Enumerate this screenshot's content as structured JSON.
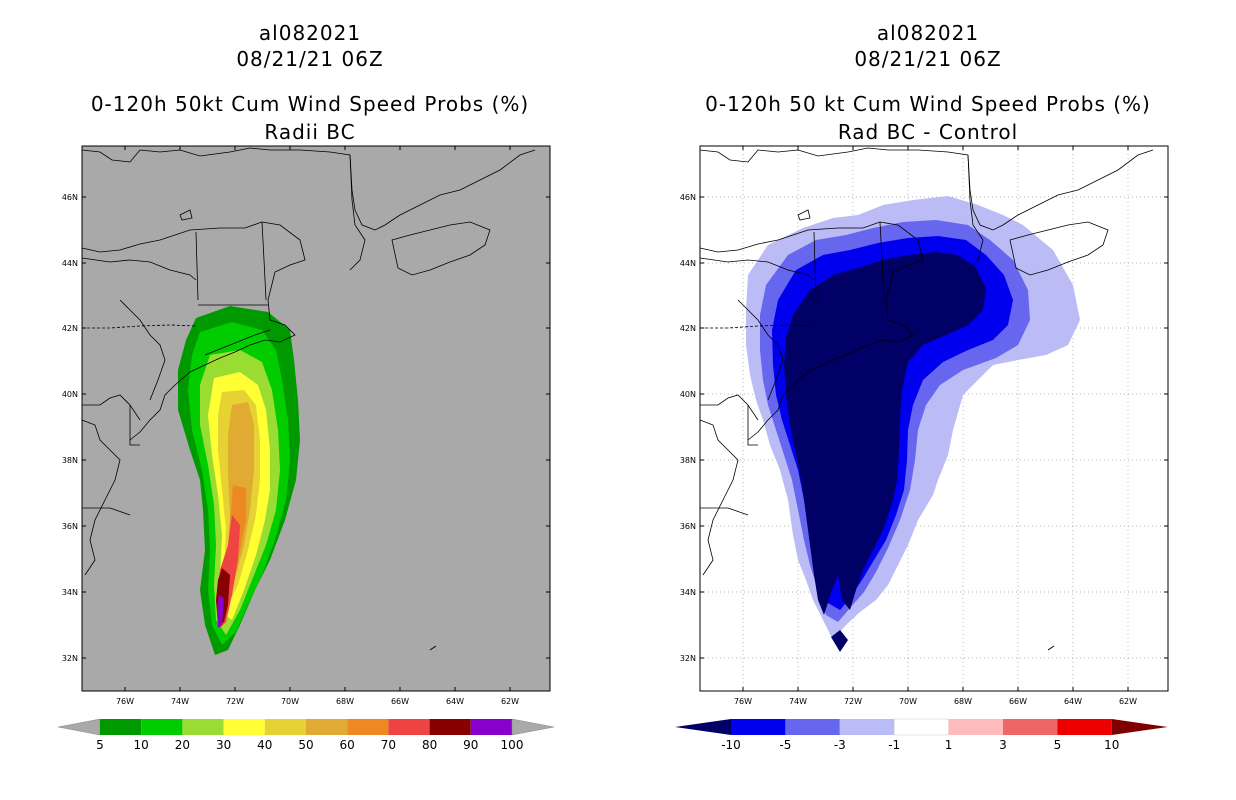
{
  "left_panel": {
    "storm_id": "al082021",
    "datetime": "08/21/21 06Z",
    "title": "0-120h 50kt Cum Wind Speed Probs (%)",
    "subtitle": "Radii BC",
    "colorbar_labels": [
      "5",
      "10",
      "20",
      "30",
      "40",
      "50",
      "60",
      "70",
      "80",
      "90",
      "100"
    ],
    "colorbar_colors": [
      "#009a00",
      "#00cc00",
      "#99dd33",
      "#ffff33",
      "#e6d233",
      "#e0aa33",
      "#ee8822",
      "#ee4444",
      "#880000",
      "#8800cc"
    ],
    "background_color": "#a9a9a9"
  },
  "right_panel": {
    "storm_id": "al082021",
    "datetime": "08/21/21 06Z",
    "title": "0-120h 50 kt Cum Wind Speed Probs (%)",
    "subtitle": "Rad BC - Control",
    "colorbar_labels": [
      "-10",
      "-5",
      "-3",
      "-1",
      "1",
      "3",
      "5",
      "10"
    ],
    "colorbar_colors": [
      "#000066",
      "#0000ee",
      "#6666ee",
      "#bbbbf6",
      "#ffffff",
      "#ffbbbb",
      "#f06666",
      "#ee0000",
      "#800000"
    ],
    "background_color": "#ffffff"
  },
  "axes": {
    "lat_labels": [
      "46N",
      "44N",
      "42N",
      "40N",
      "38N",
      "36N",
      "34N",
      "32N"
    ],
    "lon_labels": [
      "76W",
      "74W",
      "72W",
      "70W",
      "68W",
      "66W",
      "64W",
      "62W"
    ]
  }
}
